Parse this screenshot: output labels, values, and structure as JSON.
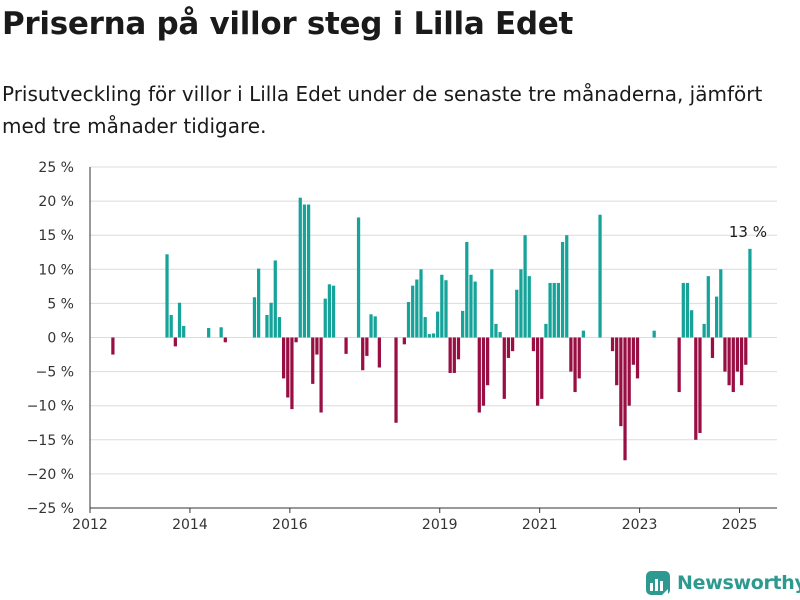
{
  "header": {
    "title": "Priserna på villor steg i Lilla Edet",
    "subtitle": "Prisutveckling för villor i Lilla Edet under de senaste tre månaderna, jämfört med tre månader tidigare."
  },
  "brand": {
    "name": "Newsworthy",
    "icon": "newsworthy-logo-icon"
  },
  "colors": {
    "positive": "#16a39a",
    "negative": "#990f44",
    "grid": "#dcdcdc",
    "axis": "#333333"
  },
  "chart_data": {
    "type": "bar",
    "ylim": [
      -25,
      25
    ],
    "yticks": [
      25,
      20,
      15,
      10,
      5,
      0,
      -5,
      -10,
      -15,
      -20,
      -25
    ],
    "ytick_labels": [
      "25 %",
      "20 %",
      "15 %",
      "10 %",
      "5 %",
      "0 %",
      "−5 %",
      "−10 %",
      "−15 %",
      "−20 %",
      "−25 %"
    ],
    "xlim": [
      "2012-01",
      "2025-10"
    ],
    "xticks": [
      "2012-01",
      "2014-01",
      "2016-01",
      "2019-01",
      "2021-01",
      "2023-01",
      "2025-01"
    ],
    "xtick_labels": [
      "2012",
      "2014",
      "2016",
      "2019",
      "2021",
      "2023",
      "2025"
    ],
    "annotation": {
      "text": "13 %",
      "x": "2025-03",
      "y": 13
    },
    "x": [
      "2012-06",
      "2013-07",
      "2013-08",
      "2013-09",
      "2013-10",
      "2013-11",
      "2014-05",
      "2014-08",
      "2014-09",
      "2015-04",
      "2015-05",
      "2015-07",
      "2015-08",
      "2015-09",
      "2015-10",
      "2015-11",
      "2015-12",
      "2016-01",
      "2016-02",
      "2016-03",
      "2016-04",
      "2016-05",
      "2016-06",
      "2016-07",
      "2016-08",
      "2016-09",
      "2016-10",
      "2016-11",
      "2017-02",
      "2017-05",
      "2017-06",
      "2017-07",
      "2017-08",
      "2017-09",
      "2017-10",
      "2018-02",
      "2018-04",
      "2018-05",
      "2018-06",
      "2018-07",
      "2018-08",
      "2018-09",
      "2018-10",
      "2018-11",
      "2018-12",
      "2019-01",
      "2019-02",
      "2019-03",
      "2019-04",
      "2019-05",
      "2019-06",
      "2019-07",
      "2019-08",
      "2019-09",
      "2019-10",
      "2019-11",
      "2019-12",
      "2020-01",
      "2020-02",
      "2020-03",
      "2020-04",
      "2020-05",
      "2020-06",
      "2020-07",
      "2020-08",
      "2020-09",
      "2020-10",
      "2020-11",
      "2020-12",
      "2021-01",
      "2021-02",
      "2021-03",
      "2021-04",
      "2021-05",
      "2021-06",
      "2021-07",
      "2021-08",
      "2021-09",
      "2021-10",
      "2021-11",
      "2022-03",
      "2022-06",
      "2022-07",
      "2022-08",
      "2022-09",
      "2022-10",
      "2022-11",
      "2022-12",
      "2023-04",
      "2023-10",
      "2023-11",
      "2023-12",
      "2024-01",
      "2024-02",
      "2024-03",
      "2024-04",
      "2024-05",
      "2024-06",
      "2024-07",
      "2024-08",
      "2024-09",
      "2024-10",
      "2024-11",
      "2024-12",
      "2025-01",
      "2025-02",
      "2025-03"
    ],
    "values": [
      -2.5,
      12.2,
      3.3,
      -1.3,
      5.1,
      1.7,
      1.4,
      1.5,
      -0.7,
      5.9,
      10.1,
      3.3,
      5.1,
      11.3,
      3.0,
      -6.0,
      -8.8,
      -10.5,
      -0.7,
      20.5,
      19.5,
      19.5,
      -6.8,
      -2.5,
      -11.0,
      5.7,
      7.8,
      7.6,
      -2.4,
      17.6,
      -4.8,
      -2.7,
      3.4,
      3.1,
      -4.4,
      -12.5,
      -1.0,
      5.2,
      7.6,
      8.5,
      10.0,
      3.0,
      0.5,
      0.6,
      3.8,
      9.2,
      8.4,
      -5.2,
      -5.2,
      -3.2,
      3.9,
      14.0,
      9.2,
      8.2,
      -11.0,
      -10.0,
      -7.0,
      10.0,
      2.0,
      0.8,
      -9.0,
      -3.0,
      -2.0,
      7.0,
      10.0,
      15.0,
      9.0,
      -2.0,
      -10.0,
      -9.0,
      2.0,
      8.0,
      8.0,
      8.0,
      14.0,
      15.0,
      -5.0,
      -8.0,
      -6.0,
      1.0,
      18.0,
      -2.0,
      -7.0,
      -13.0,
      -18.0,
      -10.0,
      -4.0,
      -6.0,
      1.0,
      -8.0,
      8.0,
      8.0,
      4.0,
      -15.0,
      -14.0,
      2.0,
      9.0,
      -3.0,
      6.0,
      10.0,
      -5.0,
      -7.0,
      -8.0,
      -5.0,
      -7.0,
      -4.0,
      13.0
    ]
  }
}
